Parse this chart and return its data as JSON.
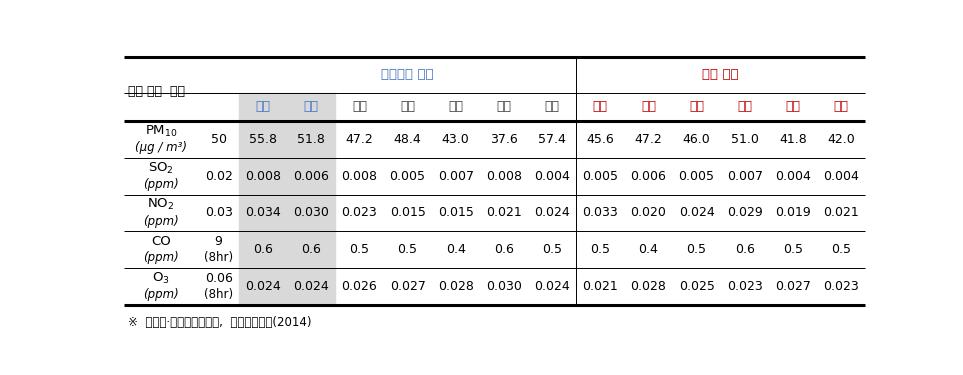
{
  "group_header_ind": "산단소재 지역",
  "group_header_maj": "주요 도시",
  "top_left_label": "오염 물질  기준",
  "industrial_cities": [
    "시흥",
    "안산",
    "울산",
    "포항",
    "광양",
    "여수",
    "청주"
  ],
  "major_cities": [
    "서울",
    "부산",
    "대구",
    "인천",
    "광주",
    "대전"
  ],
  "pollutants": [
    {
      "name": "PM$_{10}$",
      "name_plain": "PM10",
      "unit": "(μg / m³)",
      "standard": "50",
      "industrial": [
        "55.8",
        "51.8",
        "47.2",
        "48.4",
        "43.0",
        "37.6",
        "57.4"
      ],
      "major": [
        "45.6",
        "47.2",
        "46.0",
        "51.0",
        "41.8",
        "42.0"
      ]
    },
    {
      "name": "SO$_2$",
      "name_plain": "SO2",
      "unit": "(ppm)",
      "standard": "0.02",
      "industrial": [
        "0.008",
        "0.006",
        "0.008",
        "0.005",
        "0.007",
        "0.008",
        "0.004"
      ],
      "major": [
        "0.005",
        "0.006",
        "0.005",
        "0.007",
        "0.004",
        "0.004"
      ]
    },
    {
      "name": "NO$_2$",
      "name_plain": "NO2",
      "unit": "(ppm)",
      "standard": "0.03",
      "industrial": [
        "0.034",
        "0.030",
        "0.023",
        "0.015",
        "0.015",
        "0.021",
        "0.024"
      ],
      "major": [
        "0.033",
        "0.020",
        "0.024",
        "0.029",
        "0.019",
        "0.021"
      ]
    },
    {
      "name": "CO",
      "name_plain": "CO",
      "unit": "(ppm)",
      "standard": "9\n(8hr)",
      "industrial": [
        "0.6",
        "0.6",
        "0.5",
        "0.5",
        "0.4",
        "0.6",
        "0.5"
      ],
      "major": [
        "0.5",
        "0.4",
        "0.5",
        "0.6",
        "0.5",
        "0.5"
      ]
    },
    {
      "name": "O$_3$",
      "name_plain": "O3",
      "unit": "(ppm)",
      "standard": "0.06\n(8hr)",
      "industrial": [
        "0.024",
        "0.024",
        "0.026",
        "0.027",
        "0.028",
        "0.030",
        "0.024"
      ],
      "major": [
        "0.021",
        "0.028",
        "0.025",
        "0.023",
        "0.027",
        "0.023"
      ]
    }
  ],
  "footnote": "※  환경부·국립환경과학원,  대기환경연보(2014)",
  "shaded_color": "#d9d9d9",
  "header_group1_color": "#4472c4",
  "header_group2_color": "#c00000",
  "ind_city_colors": [
    "#4472c4",
    "#4472c4",
    "#3f3f3f",
    "#3f3f3f",
    "#3f3f3f",
    "#3f3f3f",
    "#3f3f3f"
  ],
  "maj_city_color": "#c00000",
  "figsize": [
    9.63,
    3.75
  ],
  "dpi": 100
}
